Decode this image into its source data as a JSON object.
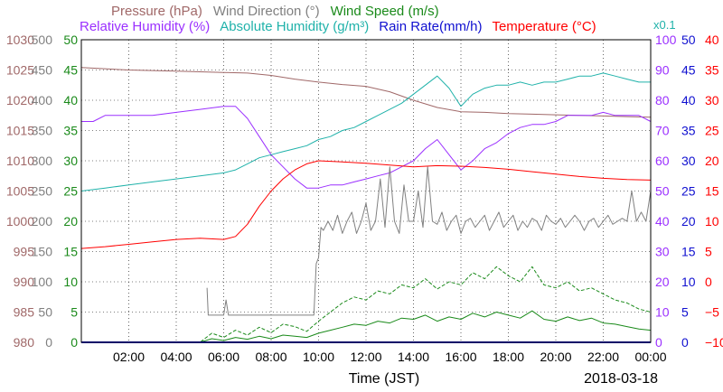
{
  "chart_data": {
    "type": "line",
    "date_label": "2018-03-18",
    "xlabel": "Time (JST)",
    "x_ticks": [
      "02:00",
      "04:00",
      "06:00",
      "08:00",
      "10:00",
      "12:00",
      "14:00",
      "16:00",
      "18:00",
      "20:00",
      "22:00",
      "00:00"
    ],
    "xlim_hours": [
      0,
      24
    ],
    "grid": true,
    "legend_row1": [
      {
        "text": "Pressure (hPa)",
        "color": "#a06868"
      },
      {
        "text": "Wind Direction (°)",
        "color": "#808080"
      },
      {
        "text": "Wind Speed (m/s)",
        "color": "#1a8a1a"
      }
    ],
    "legend_row2": [
      {
        "text": "Relative Humidity (%)",
        "color": "#9b30ff"
      },
      {
        "text": "Absolute Humidity (g/m³)",
        "color": "#20b2aa"
      },
      {
        "text": "Rain Rate(mm/h)",
        "color": "#1010d0"
      },
      {
        "text": "Temperature (°C)",
        "color": "#ff0000"
      }
    ],
    "abs_humidity_scale_note": "x0.1",
    "axes_left": [
      {
        "name": "pressure",
        "color": "#a06868",
        "ticks": [
          "1030",
          "1025",
          "1020",
          "1015",
          "1010",
          "1005",
          "1000",
          "995",
          "990",
          "985",
          "980"
        ],
        "min": 980,
        "max": 1030
      },
      {
        "name": "wind_direction",
        "color": "#808080",
        "ticks": [
          "500",
          "450",
          "400",
          "350",
          "300",
          "250",
          "200",
          "150",
          "100",
          "50",
          "0"
        ],
        "min": 0,
        "max": 500
      },
      {
        "name": "wind_speed",
        "color": "#1a8a1a",
        "ticks": [
          "50",
          "45",
          "40",
          "35",
          "30",
          "25",
          "20",
          "15",
          "10",
          "5",
          "0"
        ],
        "min": 0,
        "max": 50
      }
    ],
    "axes_right": [
      {
        "name": "humidity",
        "color": "#9b30ff",
        "ticks": [
          "100",
          "90",
          "80",
          "70",
          "60",
          "50",
          "40",
          "30",
          "20",
          "10",
          "0"
        ],
        "min": 0,
        "max": 100
      },
      {
        "name": "rain_rate",
        "color": "#1010d0",
        "ticks": [
          "50",
          "45",
          "40",
          "35",
          "30",
          "25",
          "20",
          "15",
          "10",
          "5",
          "0"
        ],
        "min": 0,
        "max": 50
      },
      {
        "name": "temperature",
        "color": "#ff0000",
        "ticks": [
          "40",
          "35",
          "30",
          "25",
          "20",
          "15",
          "10",
          "5",
          "0",
          "−5",
          "−10"
        ],
        "min": -10,
        "max": 40
      }
    ],
    "series": [
      {
        "name": "Pressure",
        "axis": "pressure",
        "color": "#a06868",
        "width": 1,
        "x": [
          0,
          2,
          4,
          6,
          7,
          8,
          9,
          10,
          11,
          12,
          13,
          14,
          15,
          16,
          17,
          18,
          19,
          20,
          21,
          22,
          23,
          24
        ],
        "y": [
          1025.4,
          1025.0,
          1024.8,
          1024.6,
          1024.5,
          1024.1,
          1023.5,
          1023.0,
          1022.6,
          1022.3,
          1021.4,
          1020.0,
          1018.8,
          1018.1,
          1018.0,
          1017.8,
          1017.7,
          1017.6,
          1017.5,
          1017.4,
          1017.3,
          1017.2
        ]
      },
      {
        "name": "Relative Humidity",
        "axis": "humidity",
        "color": "#9b30ff",
        "width": 1,
        "x": [
          0,
          0.5,
          1,
          2,
          3,
          4,
          5,
          6,
          6.5,
          7,
          7.5,
          8,
          8.5,
          9,
          9.5,
          10,
          10.5,
          11,
          11.5,
          12,
          12.5,
          13,
          13.5,
          14,
          14.5,
          15,
          15.5,
          16,
          16.5,
          17,
          17.5,
          18,
          18.5,
          19,
          19.5,
          20,
          20.5,
          21,
          21.5,
          22,
          22.5,
          23,
          23.5,
          24
        ],
        "y": [
          73,
          73,
          75,
          75,
          75,
          76,
          77,
          78,
          78,
          74,
          68,
          62,
          58,
          54,
          51,
          51,
          52,
          52,
          53,
          54,
          55,
          56,
          58,
          60,
          64,
          67,
          62,
          57,
          60,
          64,
          66,
          69,
          71,
          72,
          72,
          73,
          75,
          75,
          75,
          76,
          75,
          75,
          75,
          73
        ]
      },
      {
        "name": "Absolute Humidity",
        "axis": "humidity",
        "color": "#20b2aa",
        "width": 1,
        "x": [
          0,
          1,
          2,
          3,
          4,
          5,
          6,
          6.5,
          7,
          7.5,
          8,
          8.5,
          9,
          9.5,
          10,
          10.5,
          11,
          11.5,
          12,
          12.5,
          13,
          13.5,
          14,
          14.5,
          15,
          15.5,
          16,
          16.5,
          17,
          17.5,
          18,
          18.5,
          19,
          19.5,
          20,
          20.5,
          21,
          21.5,
          22,
          22.5,
          23,
          23.5,
          24
        ],
        "y": [
          50,
          51,
          52,
          53,
          54,
          55,
          56,
          57,
          59,
          61,
          62,
          63,
          64,
          65,
          67,
          68,
          70,
          71,
          73,
          75,
          77,
          79,
          82,
          85,
          88,
          84,
          78,
          82,
          84,
          85,
          85,
          86,
          85,
          86,
          86,
          87,
          88,
          88,
          89,
          88,
          87,
          86,
          86
        ]
      },
      {
        "name": "Temperature",
        "axis": "temperature",
        "color": "#ff0000",
        "width": 1,
        "x": [
          0,
          1,
          2,
          3,
          4,
          5,
          6,
          6.5,
          7,
          7.5,
          8,
          8.5,
          9,
          9.5,
          10,
          11,
          12,
          13,
          14,
          15,
          16,
          17,
          18,
          19,
          20,
          21,
          22,
          23,
          24
        ],
        "y": [
          5.5,
          5.8,
          6.2,
          6.6,
          7.0,
          7.2,
          7.0,
          7.5,
          9.5,
          12.5,
          15,
          17,
          18.5,
          19.5,
          20,
          19.8,
          19.6,
          19.3,
          19.0,
          19.2,
          19.1,
          18.9,
          18.6,
          18.2,
          17.8,
          17.4,
          17.1,
          16.9,
          16.8
        ]
      },
      {
        "name": "Wind Direction",
        "axis": "wind_direction",
        "color": "#808080",
        "width": 1,
        "x": [
          0,
          5.2,
          5.3,
          5.35,
          5.5,
          6,
          6.1,
          6.2,
          6.4,
          7,
          8,
          9,
          9.8,
          9.9,
          10,
          10.1,
          10.2,
          10.4,
          10.6,
          10.8,
          11,
          11.2,
          11.4,
          11.6,
          11.8,
          12,
          12.2,
          12.4,
          12.6,
          12.8,
          13,
          13.2,
          13.4,
          13.6,
          13.8,
          14,
          14.2,
          14.4,
          14.6,
          14.8,
          15,
          15.2,
          15.4,
          15.6,
          15.8,
          16,
          16.2,
          16.4,
          16.6,
          16.8,
          17,
          17.2,
          17.4,
          17.6,
          17.8,
          18,
          18.2,
          18.4,
          18.6,
          18.8,
          19,
          19.2,
          19.4,
          19.6,
          19.8,
          20,
          20.2,
          20.4,
          20.6,
          20.8,
          21,
          21.2,
          21.4,
          21.6,
          21.8,
          22,
          22.2,
          22.4,
          22.6,
          22.8,
          23,
          23.2,
          23.4,
          23.6,
          23.8,
          24
        ],
        "y": [
          null,
          null,
          90,
          45,
          45,
          45,
          70,
          45,
          45,
          45,
          45,
          45,
          45,
          130,
          140,
          190,
          185,
          200,
          185,
          210,
          180,
          200,
          215,
          180,
          200,
          230,
          185,
          200,
          270,
          190,
          290,
          200,
          180,
          260,
          200,
          200,
          250,
          190,
          290,
          200,
          195,
          215,
          185,
          200,
          210,
          180,
          200,
          205,
          190,
          200,
          210,
          185,
          200,
          215,
          190,
          200,
          210,
          185,
          200,
          190,
          205,
          200,
          185,
          210,
          200,
          195,
          205,
          190,
          200,
          210,
          200,
          185,
          200,
          205,
          190,
          200,
          210,
          195,
          200,
          205,
          200,
          250,
          200,
          215,
          200,
          250
        ]
      },
      {
        "name": "Wind Speed",
        "axis": "wind_speed",
        "color": "#1a8a1a",
        "width": 1,
        "x": [
          0,
          5,
          5.5,
          6,
          6.5,
          7,
          7.5,
          8,
          8.5,
          9,
          9.5,
          10,
          10.5,
          11,
          11.5,
          12,
          12.5,
          13,
          13.5,
          14,
          14.5,
          15,
          15.5,
          16,
          16.5,
          17,
          17.5,
          18,
          18.5,
          19,
          19.5,
          20,
          20.5,
          21,
          21.5,
          22,
          22.5,
          23,
          23.5,
          24
        ],
        "y": [
          0,
          0,
          0.6,
          0.3,
          0.8,
          0.5,
          1.0,
          0.6,
          1.2,
          1.0,
          0.8,
          1.5,
          2,
          2.5,
          3,
          2.8,
          3.5,
          3.2,
          4.0,
          3.8,
          4.5,
          3.5,
          4.2,
          3.8,
          4.8,
          4.2,
          5.0,
          4.5,
          4.0,
          5.2,
          3.8,
          3.5,
          4.2,
          3.6,
          4.0,
          3.2,
          3.0,
          2.6,
          2.2,
          2.0
        ]
      },
      {
        "name": "Wind Speed Gust",
        "axis": "wind_speed",
        "color": "#1a8a1a",
        "width": 1,
        "dash": "4,2",
        "x": [
          0,
          5,
          5.5,
          6,
          6.5,
          7,
          7.5,
          8,
          8.5,
          9,
          9.5,
          10,
          10.5,
          11,
          11.5,
          12,
          12.5,
          13,
          13.5,
          14,
          14.5,
          15,
          15.5,
          16,
          16.5,
          17,
          17.5,
          18,
          18.5,
          19,
          19.5,
          20,
          20.5,
          21,
          21.5,
          22,
          22.5,
          23,
          23.5,
          24
        ],
        "y": [
          0,
          0,
          1.5,
          0.8,
          2.0,
          1.2,
          2.5,
          1.6,
          3.0,
          2.6,
          1.8,
          3.5,
          5,
          6.5,
          7.5,
          7.0,
          8.5,
          8.0,
          9.5,
          9.0,
          10.5,
          8.8,
          10.0,
          9.5,
          11.5,
          10.5,
          12.5,
          11.0,
          10.0,
          12.5,
          9.5,
          9.0,
          10.0,
          8.5,
          9.0,
          8.0,
          7.0,
          6.5,
          5.5,
          5.0
        ]
      },
      {
        "name": "Rain Rate",
        "axis": "rain_rate",
        "color": "#1010d0",
        "width": 2,
        "x": [
          0,
          24
        ],
        "y": [
          0,
          0
        ]
      }
    ]
  }
}
